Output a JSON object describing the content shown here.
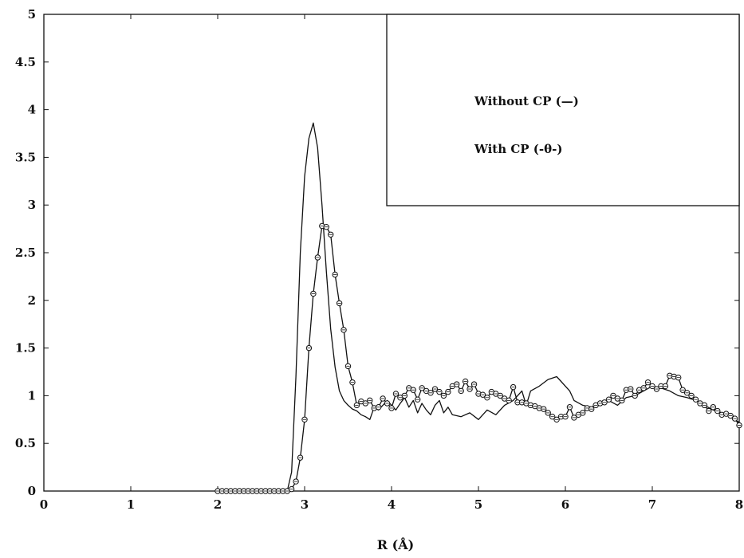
{
  "chart_data": {
    "type": "line",
    "title": "",
    "xlabel": "R (Å)",
    "ylabel": "",
    "xlim": [
      0,
      8
    ],
    "ylim": [
      0,
      5
    ],
    "xticks": [
      0,
      1,
      2,
      3,
      4,
      5,
      6,
      7,
      8
    ],
    "yticks": [
      0,
      0.5,
      1,
      1.5,
      2,
      2.5,
      3,
      3.5,
      4,
      4.5,
      5
    ],
    "xtick_labels": [
      "0",
      "1",
      "2",
      "3",
      "4",
      "5",
      "6",
      "7",
      "8"
    ],
    "ytick_labels": [
      "0",
      "0.5",
      "1",
      "1.5",
      "2",
      "2.5",
      "3",
      "3.5",
      "4",
      "4.5",
      "5"
    ],
    "grid": false,
    "legend_position": "top-right",
    "legend": [
      "Without CP (—)",
      "With CP (-θ-)"
    ],
    "series": [
      {
        "name": "Without CP (—)",
        "marker": "none",
        "x": [
          2.0,
          2.8,
          2.85,
          2.9,
          2.95,
          3.0,
          3.05,
          3.1,
          3.15,
          3.2,
          3.25,
          3.3,
          3.35,
          3.4,
          3.45,
          3.5,
          3.55,
          3.6,
          3.65,
          3.7,
          3.75,
          3.8,
          3.85,
          3.9,
          3.95,
          4.0,
          4.05,
          4.1,
          4.15,
          4.2,
          4.25,
          4.3,
          4.35,
          4.4,
          4.45,
          4.5,
          4.55,
          4.6,
          4.65,
          4.7,
          4.8,
          4.9,
          5.0,
          5.1,
          5.2,
          5.3,
          5.4,
          5.5,
          5.55,
          5.6,
          5.7,
          5.8,
          5.9,
          5.95,
          6.05,
          6.1,
          6.2,
          6.3,
          6.4,
          6.5,
          6.6,
          6.7,
          6.8,
          6.9,
          7.0,
          7.1,
          7.2,
          7.3,
          7.4,
          7.5,
          7.6,
          7.7,
          7.8,
          7.9,
          8.0
        ],
        "y": [
          0.0,
          0.0,
          0.2,
          1.2,
          2.5,
          3.3,
          3.7,
          3.86,
          3.6,
          3.0,
          2.3,
          1.7,
          1.3,
          1.05,
          0.95,
          0.9,
          0.86,
          0.84,
          0.8,
          0.78,
          0.75,
          0.88,
          0.85,
          0.9,
          0.95,
          0.9,
          0.85,
          0.92,
          0.98,
          0.88,
          0.95,
          0.82,
          0.92,
          0.85,
          0.8,
          0.9,
          0.95,
          0.82,
          0.88,
          0.8,
          0.78,
          0.82,
          0.75,
          0.85,
          0.8,
          0.9,
          0.95,
          1.05,
          0.9,
          1.05,
          1.1,
          1.17,
          1.2,
          1.15,
          1.05,
          0.95,
          0.9,
          0.88,
          0.92,
          0.95,
          0.9,
          0.98,
          1.0,
          1.05,
          1.1,
          1.08,
          1.05,
          1.0,
          0.98,
          0.95,
          0.9,
          0.85,
          0.82,
          0.78,
          0.72
        ]
      },
      {
        "name": "With CP (-θ-)",
        "marker": "circle",
        "x": [
          2.0,
          2.05,
          2.1,
          2.15,
          2.2,
          2.25,
          2.3,
          2.35,
          2.4,
          2.45,
          2.5,
          2.55,
          2.6,
          2.65,
          2.7,
          2.75,
          2.8,
          2.85,
          2.9,
          2.95,
          3.0,
          3.05,
          3.1,
          3.15,
          3.2,
          3.25,
          3.3,
          3.35,
          3.4,
          3.45,
          3.5,
          3.55,
          3.6,
          3.65,
          3.7,
          3.75,
          3.8,
          3.85,
          3.9,
          3.95,
          4.0,
          4.05,
          4.1,
          4.15,
          4.2,
          4.25,
          4.3,
          4.35,
          4.4,
          4.45,
          4.5,
          4.55,
          4.6,
          4.65,
          4.7,
          4.75,
          4.8,
          4.85,
          4.9,
          4.95,
          5.0,
          5.05,
          5.1,
          5.15,
          5.2,
          5.25,
          5.3,
          5.35,
          5.4,
          5.45,
          5.5,
          5.55,
          5.6,
          5.65,
          5.7,
          5.75,
          5.8,
          5.85,
          5.9,
          5.95,
          6.0,
          6.05,
          6.1,
          6.15,
          6.2,
          6.25,
          6.3,
          6.35,
          6.4,
          6.45,
          6.5,
          6.55,
          6.6,
          6.65,
          6.7,
          6.75,
          6.8,
          6.85,
          6.9,
          6.95,
          7.0,
          7.05,
          7.1,
          7.15,
          7.2,
          7.25,
          7.3,
          7.35,
          7.4,
          7.45,
          7.5,
          7.55,
          7.6,
          7.65,
          7.7,
          7.75,
          7.8,
          7.85,
          7.9,
          7.95,
          8.0
        ],
        "y": [
          0.0,
          0.0,
          0.0,
          0.0,
          0.0,
          0.0,
          0.0,
          0.0,
          0.0,
          0.0,
          0.0,
          0.0,
          0.0,
          0.0,
          0.0,
          0.0,
          0.0,
          0.02,
          0.1,
          0.35,
          0.75,
          1.5,
          2.07,
          2.45,
          2.78,
          2.77,
          2.69,
          2.27,
          1.97,
          1.69,
          1.31,
          1.14,
          0.9,
          0.94,
          0.92,
          0.95,
          0.87,
          0.88,
          0.97,
          0.92,
          0.87,
          1.02,
          0.98,
          1.0,
          1.08,
          1.06,
          0.96,
          1.08,
          1.05,
          1.03,
          1.07,
          1.04,
          1.0,
          1.04,
          1.1,
          1.12,
          1.05,
          1.15,
          1.07,
          1.12,
          1.02,
          1.01,
          0.98,
          1.04,
          1.02,
          1.0,
          0.97,
          0.95,
          1.09,
          0.93,
          0.93,
          0.92,
          0.9,
          0.89,
          0.87,
          0.86,
          0.82,
          0.78,
          0.75,
          0.78,
          0.78,
          0.88,
          0.77,
          0.8,
          0.82,
          0.87,
          0.86,
          0.9,
          0.92,
          0.93,
          0.96,
          1.0,
          0.97,
          0.95,
          1.06,
          1.07,
          1.0,
          1.06,
          1.08,
          1.14,
          1.1,
          1.07,
          1.1,
          1.1,
          1.21,
          1.2,
          1.19,
          1.06,
          1.03,
          1.0,
          0.96,
          0.92,
          0.9,
          0.84,
          0.88,
          0.84,
          0.8,
          0.81,
          0.79,
          0.76,
          0.69
        ]
      }
    ]
  }
}
